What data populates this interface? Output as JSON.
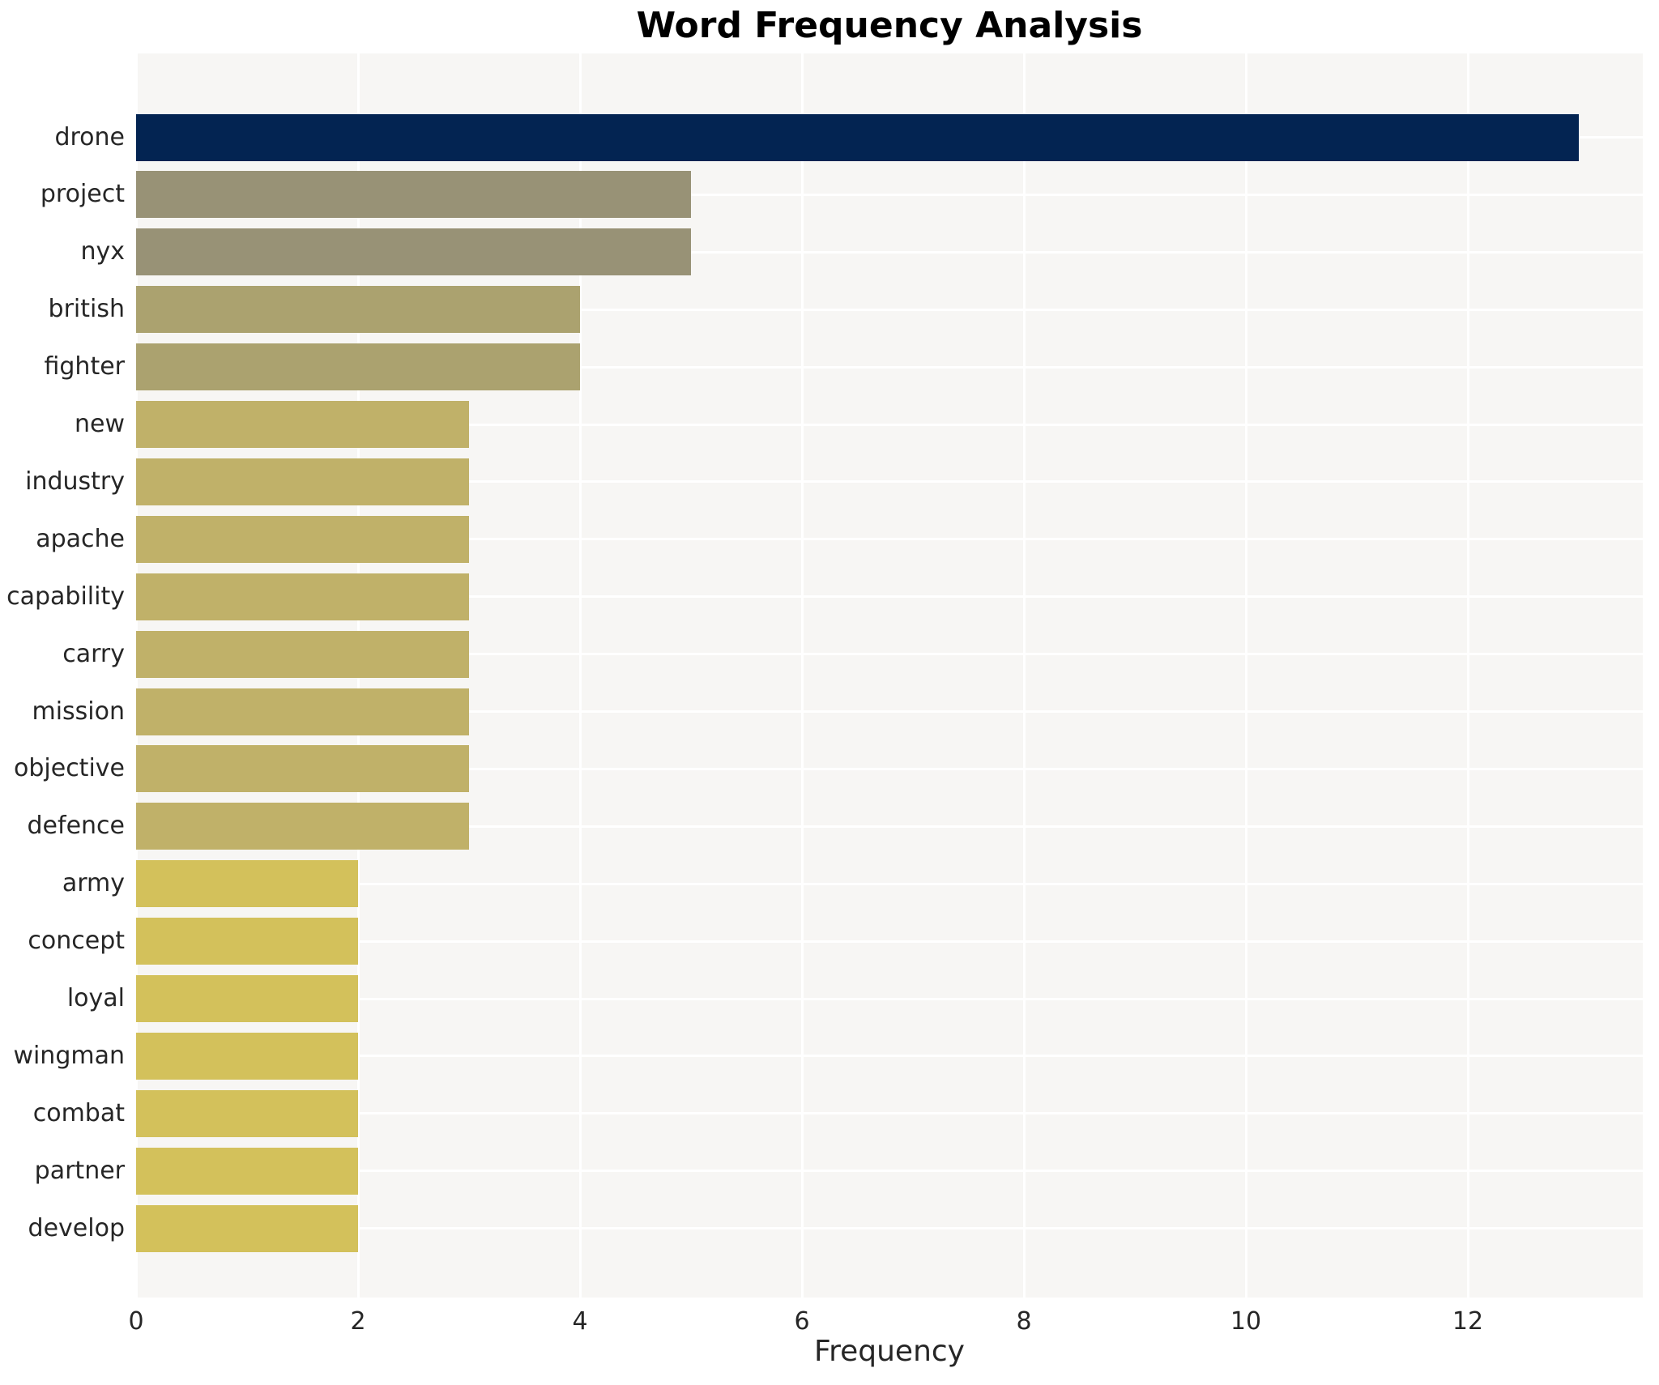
{
  "chart_data": {
    "type": "bar",
    "orientation": "horizontal",
    "title": "Word Frequency Analysis",
    "xlabel": "Frequency",
    "ylabel": "",
    "categories": [
      "drone",
      "project",
      "nyx",
      "british",
      "fighter",
      "new",
      "industry",
      "apache",
      "capability",
      "carry",
      "mission",
      "objective",
      "defence",
      "army",
      "concept",
      "loyal",
      "wingman",
      "combat",
      "partner",
      "develop"
    ],
    "values": [
      13,
      5,
      5,
      4,
      4,
      3,
      3,
      3,
      3,
      3,
      3,
      3,
      3,
      2,
      2,
      2,
      2,
      2,
      2,
      2
    ],
    "bar_colors": [
      "#032452",
      "#989276",
      "#989276",
      "#aba26f",
      "#aba26f",
      "#c0b169",
      "#c0b169",
      "#c0b169",
      "#c0b169",
      "#c0b169",
      "#c0b169",
      "#c0b169",
      "#c0b169",
      "#d3c15b",
      "#d3c15b",
      "#d3c15b",
      "#d3c15b",
      "#d3c15b",
      "#d3c15b",
      "#d3c15b"
    ],
    "xticks": [
      0,
      2,
      4,
      6,
      8,
      10,
      12
    ],
    "xlim": [
      0,
      13.58
    ],
    "grid": true,
    "legend": "none",
    "plot_background": "#f7f6f4",
    "grid_color": "#ffffff",
    "title_color": "#000000",
    "tick_color": "#262626"
  }
}
